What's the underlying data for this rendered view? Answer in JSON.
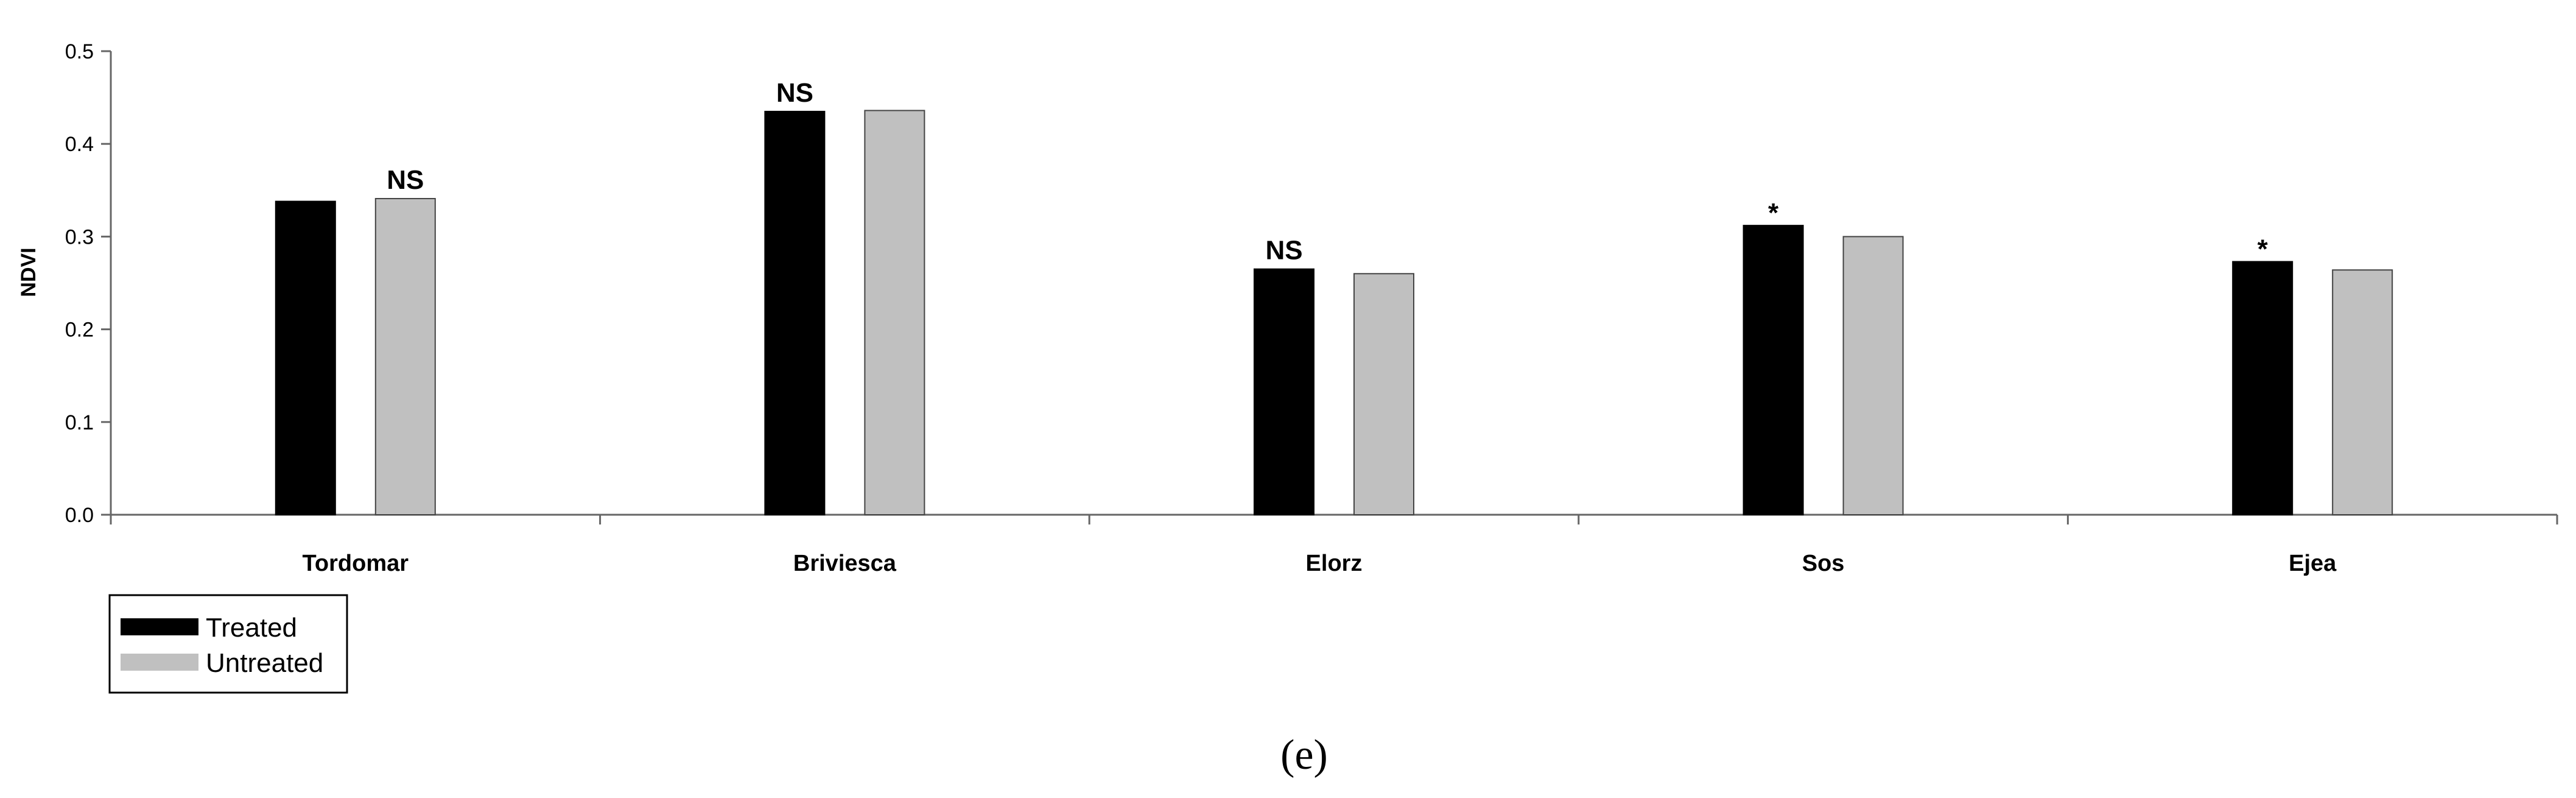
{
  "chart_data": {
    "type": "bar",
    "title": "",
    "xlabel": "",
    "ylabel": "NDVI",
    "ylim": [
      0,
      0.5
    ],
    "yticks": [
      "0.0",
      "0.1",
      "0.2",
      "0.3",
      "0.4",
      "0.5"
    ],
    "grid": false,
    "legend": "bottom-left",
    "categories": [
      "Tordomar",
      "Briviesca",
      "Elorz",
      "Sos",
      "Ejea"
    ],
    "series": [
      {
        "name": "Treated",
        "color": "#000000",
        "values": [
          0.338,
          0.435,
          0.265,
          0.312,
          0.273
        ]
      },
      {
        "name": "Untreated",
        "color": "#c0c0c0",
        "values": [
          0.341,
          0.436,
          0.26,
          0.3,
          0.264
        ]
      }
    ],
    "annotations": [
      {
        "category": "Tordomar",
        "series": "Untreated",
        "text": "NS"
      },
      {
        "category": "Briviesca",
        "series": "Treated",
        "text": "NS"
      },
      {
        "category": "Elorz",
        "series": "Treated",
        "text": "NS"
      },
      {
        "category": "Sos",
        "series": "Treated",
        "text": "*"
      },
      {
        "category": "Ejea",
        "series": "Treated",
        "text": "*"
      }
    ]
  },
  "caption": "(e)"
}
